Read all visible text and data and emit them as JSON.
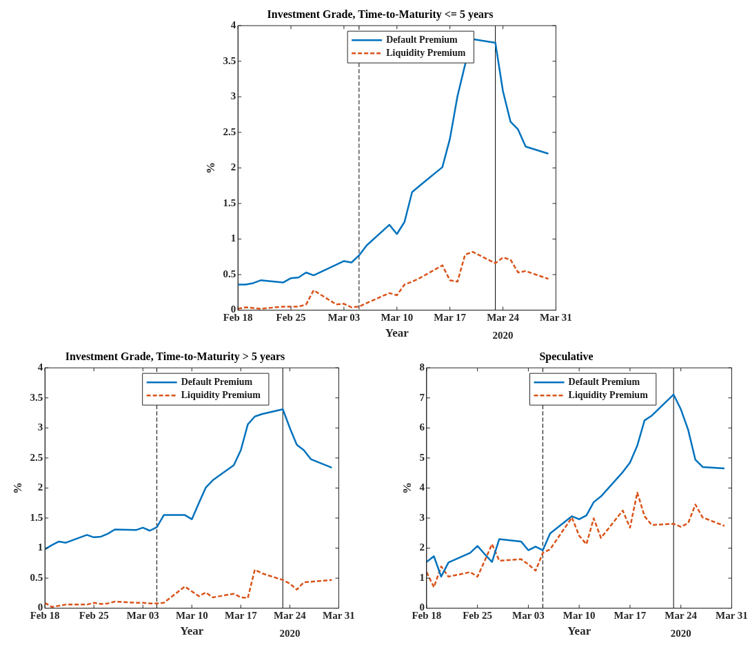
{
  "chart_data": [
    {
      "type": "line",
      "title": "Investment Grade, Time-to-Maturity <= 5 years",
      "xlabel": "Year",
      "ylabel": "%",
      "annotations": [
        "2020"
      ],
      "legend": "top",
      "grid": false,
      "x": [
        "2020-02-18",
        "2020-02-19",
        "2020-02-20",
        "2020-02-21",
        "2020-02-24",
        "2020-02-25",
        "2020-02-26",
        "2020-02-27",
        "2020-02-28",
        "2020-03-02",
        "2020-03-03",
        "2020-03-04",
        "2020-03-05",
        "2020-03-06",
        "2020-03-09",
        "2020-03-10",
        "2020-03-11",
        "2020-03-12",
        "2020-03-13",
        "2020-03-16",
        "2020-03-17",
        "2020-03-18",
        "2020-03-19",
        "2020-03-20",
        "2020-03-23",
        "2020-03-24",
        "2020-03-25",
        "2020-03-26",
        "2020-03-27",
        "2020-03-30"
      ],
      "xlim": [
        "2020-02-18",
        "2020-03-31"
      ],
      "xticks": [
        {
          "value": "2020-02-18",
          "label": "Feb 18"
        },
        {
          "value": "2020-02-25",
          "label": "Feb 25"
        },
        {
          "value": "2020-03-03",
          "label": "Mar 03"
        },
        {
          "value": "2020-03-10",
          "label": "Mar 10"
        },
        {
          "value": "2020-03-17",
          "label": "Mar 17"
        },
        {
          "value": "2020-03-24",
          "label": "Mar 24"
        },
        {
          "value": "2020-03-31",
          "label": "Mar 31"
        }
      ],
      "ylim": [
        0,
        4
      ],
      "yticks": [
        0,
        0.5,
        1,
        1.5,
        2,
        2.5,
        3,
        3.5,
        4
      ],
      "series": [
        {
          "name": "Default Premium",
          "color": "#0072bd",
          "line_style": "solid",
          "values": [
            0.36,
            0.36,
            0.38,
            0.42,
            0.39,
            0.45,
            0.46,
            0.53,
            0.49,
            0.64,
            0.69,
            0.67,
            0.77,
            0.91,
            1.2,
            1.07,
            1.24,
            1.66,
            1.75,
            2.01,
            2.41,
            3.01,
            3.45,
            3.81,
            3.76,
            3.08,
            2.65,
            2.54,
            2.3,
            2.2
          ]
        },
        {
          "name": "Liquidity Premium",
          "color": "#d95319",
          "line_style": "dashed",
          "values": [
            0.02,
            0.04,
            0.03,
            0.02,
            0.05,
            0.05,
            0.05,
            0.08,
            0.28,
            0.08,
            0.09,
            0.04,
            0.05,
            0.1,
            0.24,
            0.21,
            0.36,
            0.4,
            0.45,
            0.63,
            0.42,
            0.4,
            0.78,
            0.82,
            0.66,
            0.74,
            0.71,
            0.53,
            0.55,
            0.44
          ]
        }
      ],
      "ref_lines": [
        {
          "axis": "x",
          "value": "2020-03-05",
          "color": "#000000",
          "line_style": "dashed"
        },
        {
          "axis": "x",
          "value": "2020-03-23",
          "color": "#000000",
          "line_style": "solid"
        }
      ]
    },
    {
      "type": "line",
      "title": "Investment Grade, Time-to-Maturity > 5 years",
      "xlabel": "Year",
      "ylabel": "%",
      "annotations": [
        "2020"
      ],
      "legend": "top",
      "grid": false,
      "x": [
        "2020-02-18",
        "2020-02-19",
        "2020-02-20",
        "2020-02-21",
        "2020-02-24",
        "2020-02-25",
        "2020-02-26",
        "2020-02-27",
        "2020-02-28",
        "2020-03-02",
        "2020-03-03",
        "2020-03-04",
        "2020-03-05",
        "2020-03-06",
        "2020-03-09",
        "2020-03-10",
        "2020-03-11",
        "2020-03-12",
        "2020-03-13",
        "2020-03-16",
        "2020-03-17",
        "2020-03-18",
        "2020-03-19",
        "2020-03-20",
        "2020-03-23",
        "2020-03-24",
        "2020-03-25",
        "2020-03-26",
        "2020-03-27",
        "2020-03-30"
      ],
      "xlim": [
        "2020-02-18",
        "2020-03-31"
      ],
      "xticks": [
        {
          "value": "2020-02-18",
          "label": "Feb 18"
        },
        {
          "value": "2020-02-25",
          "label": "Feb 25"
        },
        {
          "value": "2020-03-03",
          "label": "Mar 03"
        },
        {
          "value": "2020-03-10",
          "label": "Mar 10"
        },
        {
          "value": "2020-03-17",
          "label": "Mar 17"
        },
        {
          "value": "2020-03-24",
          "label": "Mar 24"
        },
        {
          "value": "2020-03-31",
          "label": "Mar 31"
        }
      ],
      "ylim": [
        0,
        4
      ],
      "yticks": [
        0,
        0.5,
        1,
        1.5,
        2,
        2.5,
        3,
        3.5,
        4
      ],
      "series": [
        {
          "name": "Default Premium",
          "color": "#0072bd",
          "line_style": "solid",
          "values": [
            0.98,
            1.05,
            1.11,
            1.09,
            1.22,
            1.18,
            1.19,
            1.24,
            1.31,
            1.3,
            1.34,
            1.29,
            1.35,
            1.55,
            1.55,
            1.48,
            1.75,
            2.01,
            2.13,
            2.38,
            2.63,
            3.06,
            3.19,
            3.23,
            3.31,
            3.0,
            2.72,
            2.63,
            2.48,
            2.34
          ]
        },
        {
          "name": "Liquidity Premium",
          "color": "#d95319",
          "line_style": "dashed",
          "values": [
            0.09,
            0.02,
            0.04,
            0.06,
            0.06,
            0.09,
            0.07,
            0.08,
            0.11,
            0.09,
            0.09,
            0.08,
            0.08,
            0.09,
            0.36,
            0.28,
            0.2,
            0.26,
            0.18,
            0.24,
            0.18,
            0.17,
            0.64,
            0.58,
            0.47,
            0.41,
            0.31,
            0.43,
            0.44,
            0.47
          ]
        }
      ],
      "ref_lines": [
        {
          "axis": "x",
          "value": "2020-03-05",
          "color": "#000000",
          "line_style": "dashed"
        },
        {
          "axis": "x",
          "value": "2020-03-23",
          "color": "#000000",
          "line_style": "solid"
        }
      ]
    },
    {
      "type": "line",
      "title": "Speculative",
      "xlabel": "Year",
      "ylabel": "%",
      "annotations": [
        "2020"
      ],
      "legend": "top",
      "grid": false,
      "x": [
        "2020-02-18",
        "2020-02-19",
        "2020-02-20",
        "2020-02-21",
        "2020-02-24",
        "2020-02-25",
        "2020-02-26",
        "2020-02-27",
        "2020-02-28",
        "2020-03-02",
        "2020-03-03",
        "2020-03-04",
        "2020-03-05",
        "2020-03-06",
        "2020-03-09",
        "2020-03-10",
        "2020-03-11",
        "2020-03-12",
        "2020-03-13",
        "2020-03-16",
        "2020-03-17",
        "2020-03-18",
        "2020-03-19",
        "2020-03-20",
        "2020-03-23",
        "2020-03-24",
        "2020-03-25",
        "2020-03-26",
        "2020-03-27",
        "2020-03-30"
      ],
      "xlim": [
        "2020-02-18",
        "2020-03-31"
      ],
      "xticks": [
        {
          "value": "2020-02-18",
          "label": "Feb 18"
        },
        {
          "value": "2020-02-25",
          "label": "Feb 25"
        },
        {
          "value": "2020-03-03",
          "label": "Mar 03"
        },
        {
          "value": "2020-03-10",
          "label": "Mar 10"
        },
        {
          "value": "2020-03-17",
          "label": "Mar 17"
        },
        {
          "value": "2020-03-24",
          "label": "Mar 24"
        },
        {
          "value": "2020-03-31",
          "label": "Mar 31"
        }
      ],
      "ylim": [
        0,
        8
      ],
      "yticks": [
        0,
        1,
        2,
        3,
        4,
        5,
        6,
        7,
        8
      ],
      "series": [
        {
          "name": "Default Premium",
          "color": "#0072bd",
          "line_style": "solid",
          "values": [
            1.54,
            1.73,
            1.05,
            1.52,
            1.84,
            2.07,
            1.8,
            1.54,
            2.3,
            2.22,
            1.93,
            2.05,
            1.93,
            2.49,
            3.06,
            2.96,
            3.09,
            3.53,
            3.72,
            4.53,
            4.85,
            5.41,
            6.25,
            6.41,
            7.11,
            6.62,
            5.94,
            4.94,
            4.7,
            4.65
          ]
        },
        {
          "name": "Liquidity Premium",
          "color": "#d95319",
          "line_style": "dashed",
          "values": [
            1.2,
            0.7,
            1.39,
            1.05,
            1.2,
            1.05,
            1.58,
            2.13,
            1.58,
            1.63,
            1.46,
            1.25,
            1.84,
            1.96,
            3.02,
            2.41,
            2.13,
            2.99,
            2.34,
            3.25,
            2.68,
            3.85,
            3.06,
            2.77,
            2.81,
            2.71,
            2.83,
            3.45,
            3.02,
            2.74
          ]
        }
      ],
      "ref_lines": [
        {
          "axis": "x",
          "value": "2020-03-05",
          "color": "#000000",
          "line_style": "dashed"
        },
        {
          "axis": "x",
          "value": "2020-03-23",
          "color": "#000000",
          "line_style": "solid"
        }
      ]
    }
  ]
}
